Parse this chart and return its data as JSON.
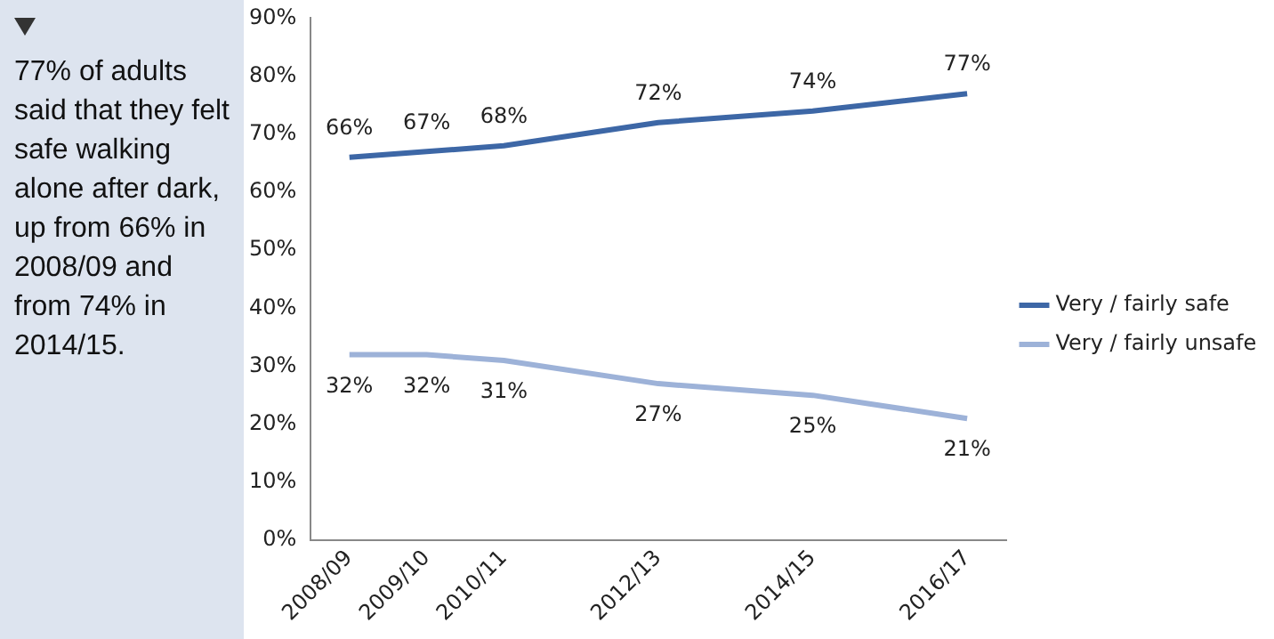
{
  "chart_data": {
    "type": "line",
    "categories": [
      "2008/09",
      "2009/10",
      "2010/11",
      null,
      "2012/13",
      null,
      "2014/15",
      null,
      "2016/17"
    ],
    "series": [
      {
        "name": "Very / fairly safe",
        "color": "#3d67a6",
        "values": [
          66,
          67,
          68,
          null,
          72,
          null,
          74,
          null,
          77
        ],
        "value_labels": [
          "66%",
          "67%",
          "68%",
          null,
          "72%",
          null,
          "74%",
          null,
          "77%"
        ]
      },
      {
        "name": "Very / fairly unsafe",
        "color": "#9db2d8",
        "values": [
          32,
          32,
          31,
          null,
          27,
          null,
          25,
          null,
          21
        ],
        "value_labels": [
          "32%",
          "32%",
          "31%",
          null,
          "27%",
          null,
          "25%",
          null,
          "21%"
        ]
      }
    ],
    "ylim": [
      0,
      90
    ],
    "yticks": [
      {
        "value": 0,
        "label": "0%"
      },
      {
        "value": 10,
        "label": "10%"
      },
      {
        "value": 20,
        "label": "20%"
      },
      {
        "value": 30,
        "label": "30%"
      },
      {
        "value": 40,
        "label": "40%"
      },
      {
        "value": 50,
        "label": "50%"
      },
      {
        "value": 60,
        "label": "60%"
      },
      {
        "value": 70,
        "label": "70%"
      },
      {
        "value": 80,
        "label": "80%"
      },
      {
        "value": 90,
        "label": "90%"
      }
    ],
    "grid": false,
    "legend": "right",
    "marker": "none",
    "line_style": "solid",
    "annotations": [
      "77% of adults said that they felt safe walking alone after dark, up from 66% in 2008/09 and from 74% in 2014/15."
    ]
  }
}
